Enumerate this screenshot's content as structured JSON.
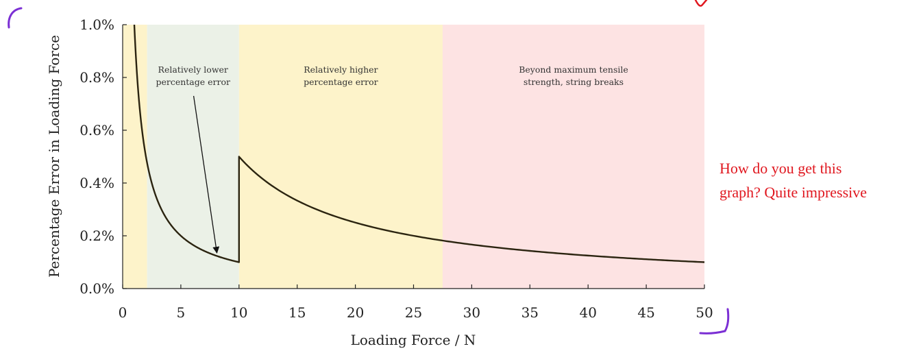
{
  "chart_data": {
    "type": "line",
    "xlabel": "Loading Force / N",
    "ylabel": "Percentage Error in Loading Force",
    "xlim": [
      0,
      50
    ],
    "ylim": [
      0,
      1.0
    ],
    "x_ticks": [
      "0",
      "5",
      "10",
      "15",
      "20",
      "25",
      "30",
      "35",
      "40",
      "45",
      "50"
    ],
    "y_ticks": [
      "0.0%",
      "0.2%",
      "0.4%",
      "0.6%",
      "0.8%",
      "1.0%"
    ],
    "grid": false,
    "regions": [
      {
        "x_start": 0,
        "x_end": 2.1,
        "color": "#fdf3ca",
        "label_lines": []
      },
      {
        "x_start": 2.1,
        "x_end": 10,
        "color": "#ebf1e7",
        "label_lines": [
          "Relatively lower",
          "percentage error"
        ]
      },
      {
        "x_start": 10,
        "x_end": 27.5,
        "color": "#fdf3ca",
        "label_lines": [
          "Relatively higher",
          "percentage error"
        ]
      },
      {
        "x_start": 27.5,
        "x_end": 50,
        "color": "#fde3e3",
        "label_lines": [
          "Beyond maximum tensile",
          "strength, string breaks"
        ]
      }
    ],
    "series": [
      {
        "color": "#2b2410",
        "segments": [
          {
            "function": "1/x",
            "x_start": 1,
            "x_end": 10
          },
          {
            "function": "5/x",
            "x_start": 10,
            "x_end": 50
          }
        ]
      }
    ],
    "arrow": {
      "from": [
        6.1,
        0.73
      ],
      "to": [
        8.1,
        0.135
      ]
    }
  },
  "annotation": {
    "line1": "How do you get this",
    "line2": "graph? Quite impressive",
    "color": "#e0171f"
  },
  "ink_color": "#7b2fd4"
}
